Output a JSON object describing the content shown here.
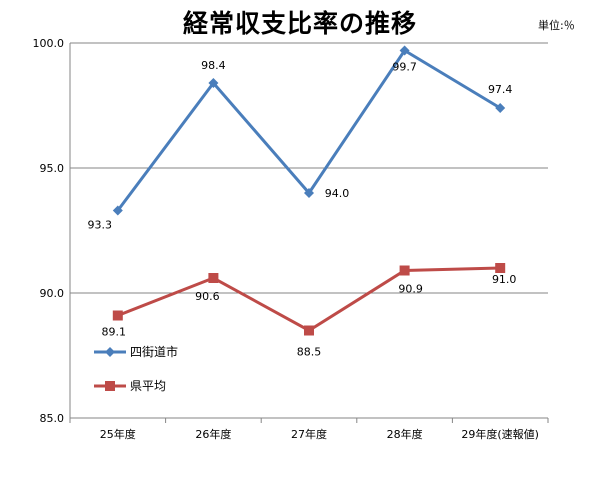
{
  "chart_data": {
    "type": "line",
    "title": "経常収支比率の推移",
    "unit": "単位:％",
    "categories": [
      "25年度",
      "26年度",
      "27年度",
      "28年度",
      "29年度(速報値)"
    ],
    "y_ticks": [
      "85.0",
      "90.0",
      "95.0",
      "100.0"
    ],
    "ylim": [
      85,
      100
    ],
    "grid": true,
    "legend_position": "lower-left",
    "series": [
      {
        "name": "四街道市",
        "values": [
          93.3,
          98.4,
          94.0,
          99.7,
          97.4
        ],
        "labels": [
          "93.3",
          "98.4",
          "94.0",
          "99.7",
          "97.4"
        ],
        "color": "#4a7ebb",
        "marker": "diamond"
      },
      {
        "name": "県平均",
        "values": [
          89.1,
          90.6,
          88.5,
          90.9,
          91.0
        ],
        "labels": [
          "89.1",
          "90.6",
          "88.5",
          "90.9",
          "91.0"
        ],
        "color": "#be4b48",
        "marker": "square"
      }
    ]
  }
}
